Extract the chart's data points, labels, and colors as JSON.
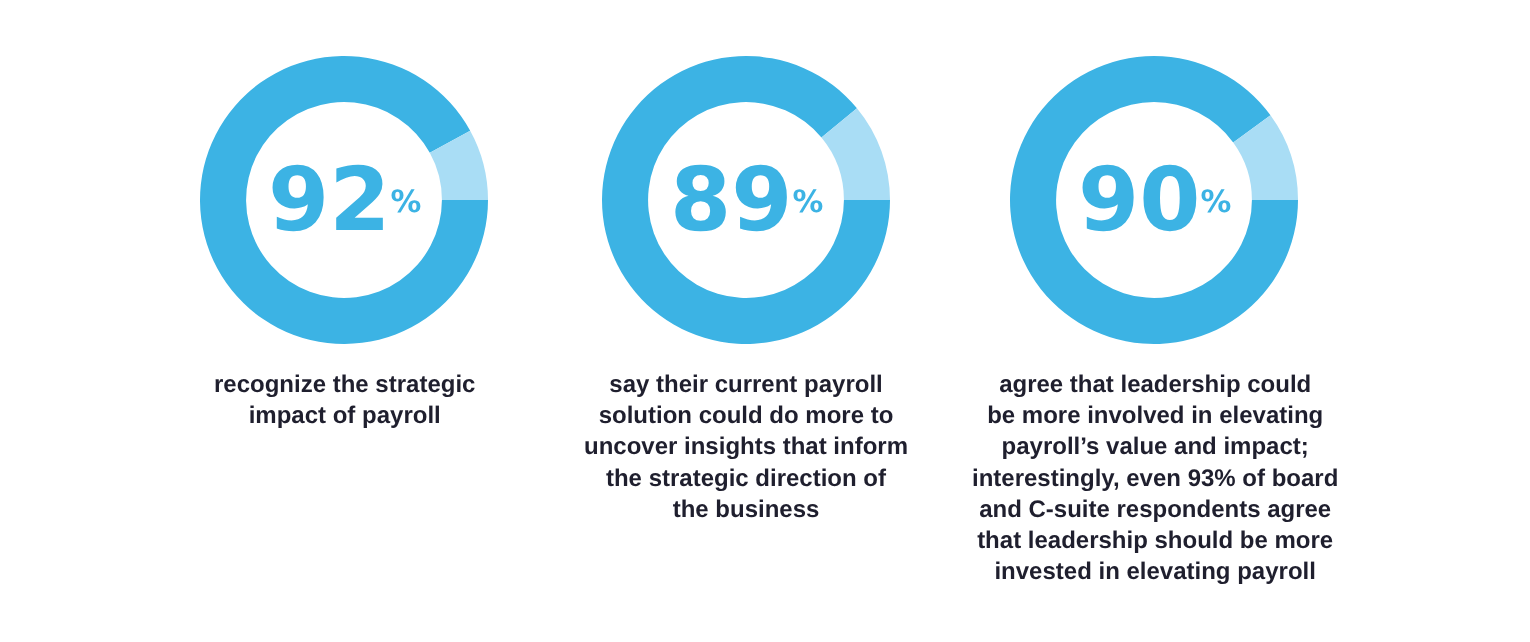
{
  "chart_data": [
    {
      "type": "donut",
      "categories": [
        null,
        null
      ],
      "values": [
        92,
        8
      ],
      "colors": [
        "#3cb3e4",
        "#a9ddf5"
      ],
      "value_labels": [
        "92$^{%}$",
        null
      ],
      "annotations": [
        "recognize the strategic\nimpact of payroll"
      ]
    },
    {
      "type": "donut",
      "categories": [
        null,
        null
      ],
      "values": [
        89,
        11
      ],
      "colors": [
        "#3cb3e4",
        "#a9ddf5"
      ],
      "value_labels": [
        "89$^{%}$",
        null
      ],
      "annotations": [
        "say their current payroll\nsolution could do more to\nuncover insights that inform\nthe strategic direction of\nthe business"
      ]
    },
    {
      "type": "donut",
      "categories": [
        null,
        null
      ],
      "values": [
        90,
        10
      ],
      "colors": [
        "#3cb3e4",
        "#a9ddf5"
      ],
      "value_labels": [
        "90$^{%}$",
        null
      ],
      "annotations": [
        "agree that leadership could\nbe more involved in elevating\npayroll’s value and impact;\ninterestingly, even 93% of board\nand C-suite respondents agree\nthat leadership should be more\ninvested in elevating payroll"
      ]
    }
  ]
}
